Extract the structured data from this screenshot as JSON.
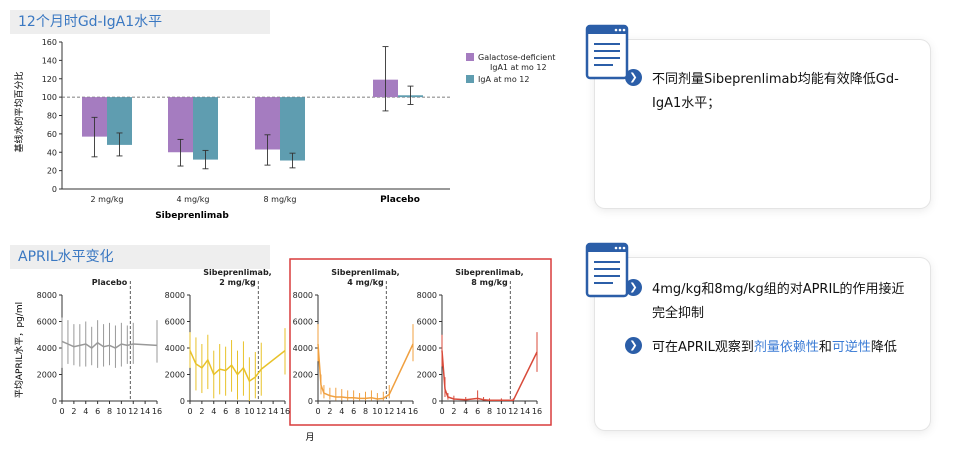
{
  "bar_section": {
    "title": "12个月时Gd-IgA1水平",
    "ylabel": "基线水的平均百分比",
    "xgroup_label": "Sibeprenlimab",
    "placebo_label": "Placebo"
  },
  "line_section": {
    "title": "APRIL水平变化",
    "ylabel": "平均APRIL水平，pg/ml",
    "xlabel": "月"
  },
  "card1": {
    "text": "不同剂量Sibeprenlimab均能有效降低Gd-IgA1水平；"
  },
  "card2": {
    "text1": "4mg/kg和8mg/kg组的对APRIL的作用接近完全抑制",
    "text2_pre": "可在APRIL观察到",
    "text2_hl1": "剂量依赖性",
    "text2_mid": "和",
    "text2_hl2": "可逆性",
    "text2_post": "降低"
  },
  "colors": {
    "gd": "#a57cc0",
    "iga": "#5f9db0",
    "accent": "#3a78c2",
    "placebo_line": "#999999",
    "dose2": "#e8c22a",
    "dose4": "#f0a040",
    "dose8": "#d84a3a",
    "highlight_box": "#d93c3c"
  },
  "icons": [
    "document-icon",
    "chevron-right-icon"
  ],
  "chart_data": [
    {
      "type": "bar",
      "categories": [
        "2 mg/kg",
        "4 mg/kg",
        "8 mg/kg",
        "Placebo"
      ],
      "series": [
        {
          "name": "Galactose-deficient IgA1 at mo 12",
          "values": [
            57,
            40,
            43,
            119
          ],
          "err_low": [
            35,
            25,
            26,
            85
          ],
          "err_high": [
            78,
            54,
            59,
            155
          ]
        },
        {
          "name": "IgA at mo 12",
          "values": [
            48,
            32,
            31,
            102
          ],
          "err_low": [
            36,
            22,
            23,
            92
          ],
          "err_high": [
            61,
            42,
            39,
            112
          ]
        }
      ],
      "ylim": [
        0,
        160
      ],
      "yticks": [
        0,
        20,
        40,
        60,
        80,
        100,
        120,
        140,
        160
      ],
      "reference_line": 100,
      "legend_position": "top-right"
    },
    {
      "type": "line",
      "panels": [
        {
          "title": "Placebo",
          "x": [
            0,
            1,
            2,
            3,
            4,
            5,
            6,
            7,
            8,
            9,
            10,
            11,
            12,
            16
          ],
          "y": [
            4500,
            4300,
            4100,
            4200,
            4300,
            4000,
            4400,
            4100,
            4200,
            4000,
            4300,
            4200,
            4300,
            4200
          ],
          "y_low": [
            2500,
            2800,
            2700,
            2600,
            2600,
            2700,
            2500,
            2600,
            2700,
            2500,
            2600,
            2800,
            2800,
            2900
          ],
          "y_high": [
            6300,
            6100,
            5800,
            5800,
            6000,
            5600,
            6100,
            5800,
            5900,
            5700,
            5900,
            5700,
            5900,
            6100
          ]
        },
        {
          "title": "Sibeprenlimab, 2 mg/kg",
          "x": [
            0,
            1,
            2,
            3,
            4,
            5,
            6,
            7,
            8,
            9,
            10,
            11,
            12,
            16
          ],
          "y": [
            3800,
            2800,
            2500,
            3100,
            2000,
            2400,
            2300,
            2700,
            2000,
            2500,
            1500,
            1800,
            2400,
            3800
          ],
          "y_low": [
            2500,
            800,
            600,
            900,
            200,
            500,
            400,
            700,
            100,
            400,
            0,
            200,
            400,
            2000
          ],
          "y_high": [
            5200,
            4800,
            4300,
            5000,
            3800,
            4300,
            4100,
            4600,
            3800,
            4500,
            3300,
            3700,
            4400,
            5500
          ]
        },
        {
          "title": "Sibeprenlimab, 4 mg/kg",
          "x": [
            0,
            0.5,
            1,
            2,
            3,
            4,
            5,
            6,
            7,
            8,
            9,
            10,
            11,
            12,
            16
          ],
          "y": [
            4300,
            1200,
            600,
            400,
            300,
            300,
            250,
            250,
            200,
            200,
            250,
            150,
            200,
            500,
            4300
          ],
          "y_low": [
            3000,
            500,
            200,
            100,
            50,
            50,
            50,
            50,
            50,
            50,
            50,
            50,
            50,
            200,
            3000
          ],
          "y_high": [
            5800,
            2000,
            1200,
            1000,
            1000,
            900,
            800,
            800,
            600,
            700,
            800,
            600,
            700,
            1200,
            5800
          ]
        },
        {
          "title": "Sibeprenlimab, 8 mg/kg",
          "x": [
            0,
            0.5,
            1,
            2,
            4,
            6,
            7,
            8,
            10,
            12,
            16
          ],
          "y": [
            3800,
            900,
            300,
            150,
            100,
            200,
            100,
            50,
            50,
            50,
            3700
          ],
          "y_low": [
            2600,
            300,
            100,
            50,
            50,
            50,
            50,
            50,
            50,
            50,
            2200
          ],
          "y_high": [
            5000,
            1800,
            600,
            400,
            300,
            800,
            300,
            200,
            200,
            200,
            5200
          ]
        }
      ],
      "ylim": [
        0,
        8000
      ],
      "yticks": [
        0,
        2000,
        4000,
        6000,
        8000
      ],
      "xticks": [
        0,
        2,
        4,
        6,
        8,
        10,
        12,
        14,
        16
      ],
      "vline_x": 11.5
    }
  ]
}
